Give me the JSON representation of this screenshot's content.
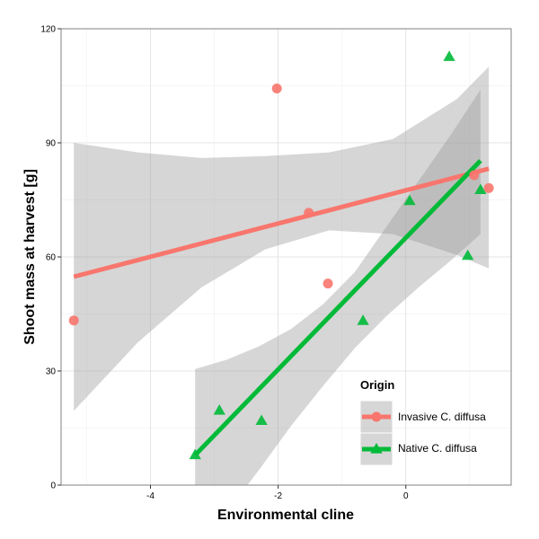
{
  "chart_data": {
    "type": "scatter",
    "xlabel": "Environmental cline",
    "ylabel": "Shoot mass at harvest [g]",
    "xlim": [
      -5.4,
      1.65
    ],
    "ylim": [
      0,
      120
    ],
    "x_ticks": [
      -4,
      -2,
      0
    ],
    "x_tick_labels": [
      "-4",
      "-2",
      "0"
    ],
    "y_ticks": [
      0,
      30,
      60,
      90,
      120
    ],
    "y_tick_labels": [
      "0",
      "30",
      "60",
      "90",
      "120"
    ],
    "grid": true,
    "legend": {
      "title": "Origin",
      "placement": "bottom-right inside"
    },
    "series": [
      {
        "name": "Invasive C. diffusa",
        "color": "#F8766D",
        "marker": "circle",
        "points": [
          {
            "x": -5.2,
            "y": 43.3
          },
          {
            "x": -2.02,
            "y": 104.3
          },
          {
            "x": -1.52,
            "y": 71.6
          },
          {
            "x": -1.22,
            "y": 53.0
          },
          {
            "x": 1.07,
            "y": 81.5
          },
          {
            "x": 1.3,
            "y": 78.1
          }
        ],
        "fit": {
          "x": [
            -5.2,
            1.3
          ],
          "y": [
            54.8,
            83.2
          ]
        },
        "ci": {
          "x": [
            -5.2,
            -4.2,
            -3.2,
            -2.2,
            -1.2,
            -0.2,
            0.8,
            1.3
          ],
          "lower": [
            19.5,
            37.5,
            52.0,
            62.0,
            67.0,
            66.0,
            60.5,
            57.0
          ],
          "upper": [
            90.0,
            87.5,
            86.0,
            86.5,
            87.5,
            91.0,
            101.5,
            110.0
          ]
        }
      },
      {
        "name": "Native C. diffusa",
        "color": "#00BA38",
        "marker": "triangle",
        "points": [
          {
            "x": -3.3,
            "y": 7.9
          },
          {
            "x": -2.92,
            "y": 19.6
          },
          {
            "x": -2.26,
            "y": 16.9
          },
          {
            "x": -0.67,
            "y": 43.2
          },
          {
            "x": 0.06,
            "y": 74.7
          },
          {
            "x": 0.68,
            "y": 112.6
          },
          {
            "x": 0.97,
            "y": 60.3
          },
          {
            "x": 1.17,
            "y": 77.6
          }
        ],
        "fit": {
          "x": [
            -3.3,
            1.17
          ],
          "y": [
            7.9,
            85.3
          ]
        },
        "ci": {
          "x": [
            -3.3,
            -2.8,
            -2.3,
            -1.8,
            -1.3,
            -0.8,
            -0.3,
            0.2,
            0.7,
            1.17
          ],
          "lower": [
            -18.0,
            -7.0,
            4.0,
            15.5,
            26.0,
            36.0,
            44.5,
            52.0,
            59.0,
            66.0
          ],
          "upper": [
            30.5,
            33.0,
            36.5,
            41.0,
            47.5,
            56.0,
            68.0,
            80.0,
            92.0,
            104.0
          ]
        }
      }
    ]
  }
}
